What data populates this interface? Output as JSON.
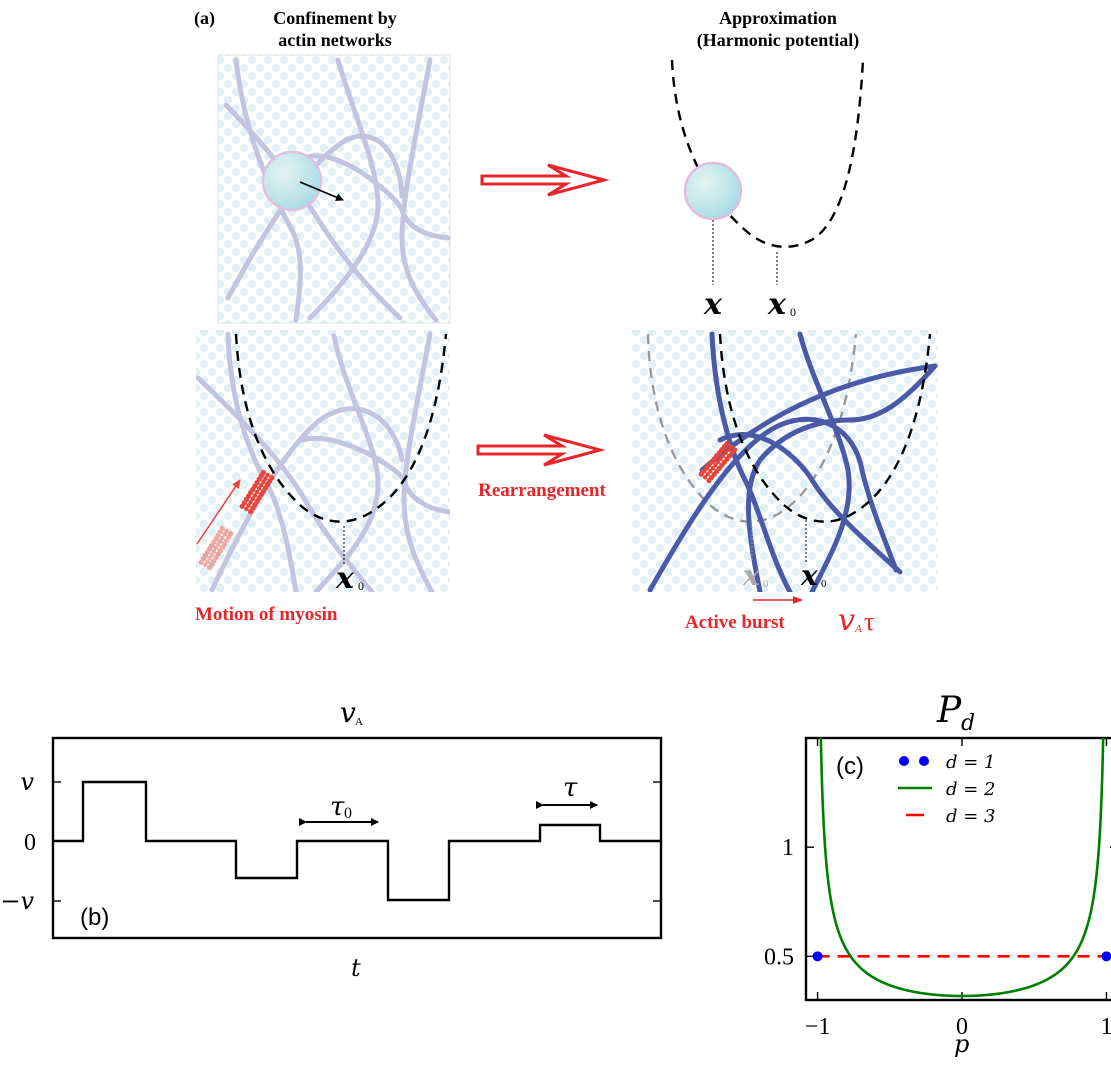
{
  "panel_a": {
    "label": "(a)",
    "title_left_line1": "Confinement by",
    "title_left_line2": "actin networks",
    "title_right_line1": "Approximation",
    "title_right_line2": "(Harmonic potential)",
    "x_label": "x",
    "x0_label": "x",
    "x0_sub": "0",
    "rearrangement": "Rearrangement",
    "motion_of_myosin": "Motion of myosin",
    "active_burst": "Active burst",
    "vA_symbol": "v",
    "vA_sub": "A",
    "tau_symbol": "τ",
    "colors": {
      "actin_light": "#c3c5e0",
      "actin_dark": "#4a5aa8",
      "myosin": "#e8453c",
      "arrow": "#e8262a",
      "potential": "#000000"
    }
  },
  "panel_b": {
    "label": "(b)",
    "title_main": "v",
    "title_sub": "A",
    "xlabel": "t",
    "ytick_v": "v",
    "ytick_0": "0",
    "ytick_neg_v": "−v",
    "tau0_base": "τ",
    "tau0_sub": "0",
    "tau_label": "τ"
  },
  "chart_data": {
    "type": "line",
    "title": "P_d",
    "title_main": "P",
    "title_sub": "d",
    "panel_label": "(c)",
    "xlabel": "p",
    "xlim": [
      -1.08,
      1.08
    ],
    "ylim": [
      0.3,
      1.5
    ],
    "xtick_labels": [
      "−1",
      "0",
      "1"
    ],
    "xtick_values": [
      -1,
      0,
      1
    ],
    "ytick_labels": [
      "0.5",
      "1"
    ],
    "ytick_values": [
      0.5,
      1
    ],
    "legend_placement": "top-right",
    "series": [
      {
        "name": "d = 1",
        "style": "points",
        "color": "#0000ff",
        "x": [
          -1,
          1
        ],
        "y": [
          0.5,
          0.5
        ]
      },
      {
        "name": "d = 2",
        "style": "line",
        "color": "#008000",
        "formula": "1/(pi*sqrt(1-p^2))"
      },
      {
        "name": "d = 3",
        "style": "dashed",
        "color": "#ff0000",
        "x": [
          -1,
          1
        ],
        "y": [
          0.5,
          0.5
        ]
      }
    ]
  }
}
